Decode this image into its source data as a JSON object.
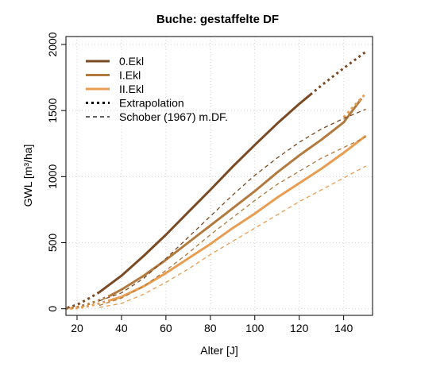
{
  "chart_data": {
    "type": "line",
    "title": "Buche: gestaffelte DF",
    "xlabel": "Alter [J]",
    "ylabel": "GWL [m³/ha]",
    "xlim": [
      15,
      153
    ],
    "ylim": [
      -50,
      2060
    ],
    "xticks": [
      20,
      40,
      60,
      80,
      100,
      120,
      140
    ],
    "yticks": [
      0,
      500,
      1000,
      1500,
      2000
    ],
    "grid": true,
    "legend_position": "top-left",
    "legend": [
      {
        "label": "0.Ekl",
        "color": "#7a4a24",
        "style": "solid"
      },
      {
        "label": "I.Ekl",
        "color": "#b27a3e",
        "style": "solid"
      },
      {
        "label": "II.Ekl",
        "color": "#e89e52",
        "style": "solid"
      },
      {
        "label": "Extrapolation",
        "color": "#000000",
        "style": "dotted"
      },
      {
        "label": "Schober (1967) m.DF.",
        "color": "#000000",
        "style": "dashed"
      }
    ],
    "series": [
      {
        "name": "0.Ekl",
        "color": "#7a4a24",
        "style": "solid",
        "x": [
          30,
          40,
          50,
          60,
          70,
          80,
          90,
          100,
          110,
          120,
          125
        ],
        "y": [
          125,
          250,
          400,
          560,
          730,
          900,
          1075,
          1240,
          1400,
          1550,
          1620
        ]
      },
      {
        "name": "0.Ekl",
        "color": "#7a4a24",
        "style": "dotted",
        "x": [
          30,
          25,
          20,
          15
        ],
        "y": [
          125,
          75,
          30,
          5
        ]
      },
      {
        "name": "0.Ekl",
        "color": "#7a4a24",
        "style": "dotted",
        "x": [
          125,
          130,
          140,
          150
        ],
        "y": [
          1620,
          1690,
          1820,
          1945
        ]
      },
      {
        "name": "I.Ekl",
        "color": "#b27a3e",
        "style": "solid",
        "x": [
          35,
          40,
          50,
          60,
          70,
          80,
          90,
          100,
          110,
          120,
          130,
          140,
          148
        ],
        "y": [
          100,
          145,
          250,
          370,
          500,
          630,
          760,
          890,
          1030,
          1160,
          1280,
          1410,
          1590
        ]
      },
      {
        "name": "I.Ekl",
        "color": "#b27a3e",
        "style": "dotted",
        "x": [
          35,
          30,
          25,
          20,
          15
        ],
        "y": [
          100,
          65,
          35,
          12,
          0
        ]
      },
      {
        "name": "I.Ekl",
        "color": "#e89e52",
        "style": "dotted",
        "x": [
          140,
          145,
          150
        ],
        "y": [
          1450,
          1540,
          1630
        ]
      },
      {
        "name": "II.Ekl",
        "color": "#e89e52",
        "style": "solid",
        "x": [
          35,
          40,
          50,
          60,
          70,
          80,
          90,
          100,
          110,
          120,
          130,
          140,
          150
        ],
        "y": [
          65,
          90,
          170,
          270,
          380,
          490,
          610,
          720,
          840,
          950,
          1060,
          1180,
          1310
        ]
      },
      {
        "name": "II.Ekl",
        "color": "#e89e52",
        "style": "dotted",
        "x": [
          35,
          30,
          25,
          20,
          15
        ],
        "y": [
          65,
          40,
          20,
          5,
          0
        ]
      },
      {
        "name": "Schober (1967) m.DF.",
        "color": "#7a4a24",
        "style": "dashed",
        "x": [
          30,
          40,
          50,
          60,
          70,
          80,
          90,
          100,
          110,
          120,
          130,
          140,
          150
        ],
        "y": [
          60,
          120,
          230,
          380,
          540,
          700,
          860,
          1010,
          1140,
          1260,
          1360,
          1440,
          1510
        ]
      },
      {
        "name": "Schober (1967) m.DF.",
        "color": "#b27a3e",
        "style": "dashed",
        "x": [
          30,
          40,
          50,
          60,
          70,
          80,
          90,
          100,
          110,
          120,
          130,
          140,
          150
        ],
        "y": [
          25,
          80,
          170,
          290,
          420,
          560,
          690,
          820,
          940,
          1040,
          1140,
          1220,
          1300
        ]
      },
      {
        "name": "Schober (1967) m.DF.",
        "color": "#e89e52",
        "style": "dashed",
        "x": [
          30,
          40,
          50,
          60,
          70,
          80,
          90,
          100,
          110,
          120,
          130,
          140,
          150
        ],
        "y": [
          10,
          40,
          110,
          200,
          300,
          410,
          510,
          610,
          710,
          810,
          900,
          990,
          1080
        ]
      }
    ]
  }
}
